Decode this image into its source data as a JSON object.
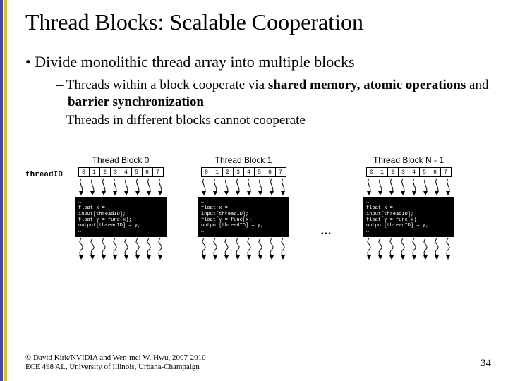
{
  "title": "Thread Blocks: Scalable Cooperation",
  "bullets": {
    "b1": "Divide monolithic thread array into multiple blocks",
    "sub1_pre": "Threads within a block cooperate via ",
    "sub1_sm": "shared memory,",
    "sub1_mid": " ",
    "sub1_ao": "atomic operations",
    "sub1_mid2": " and ",
    "sub1_bs": "barrier synchronization",
    "sub2": "Threads in different blocks cannot cooperate"
  },
  "diagram": {
    "tid_label": "threadID",
    "block_titles": [
      "Thread Block 0",
      "Thread Block 1",
      "Thread Block N - 1"
    ],
    "ids": [
      "0",
      "1",
      "2",
      "3",
      "4",
      "5",
      "6",
      "7"
    ],
    "code": "…\nfloat x =\ninput[threadID];\nfloat y = func(x);\noutput[threadID] = y;\n…",
    "ellipsis": "…",
    "arrow_color": "#000000",
    "codebox_bg": "#000000",
    "codebox_fg": "#ffffff"
  },
  "footer": {
    "line1": "© David Kirk/NVIDIA and Wen-mei W. Hwu, 2007-2010",
    "line2": "ECE 498 AL, University of Illinois, Urbana-Champaign"
  },
  "pagenum": "34"
}
